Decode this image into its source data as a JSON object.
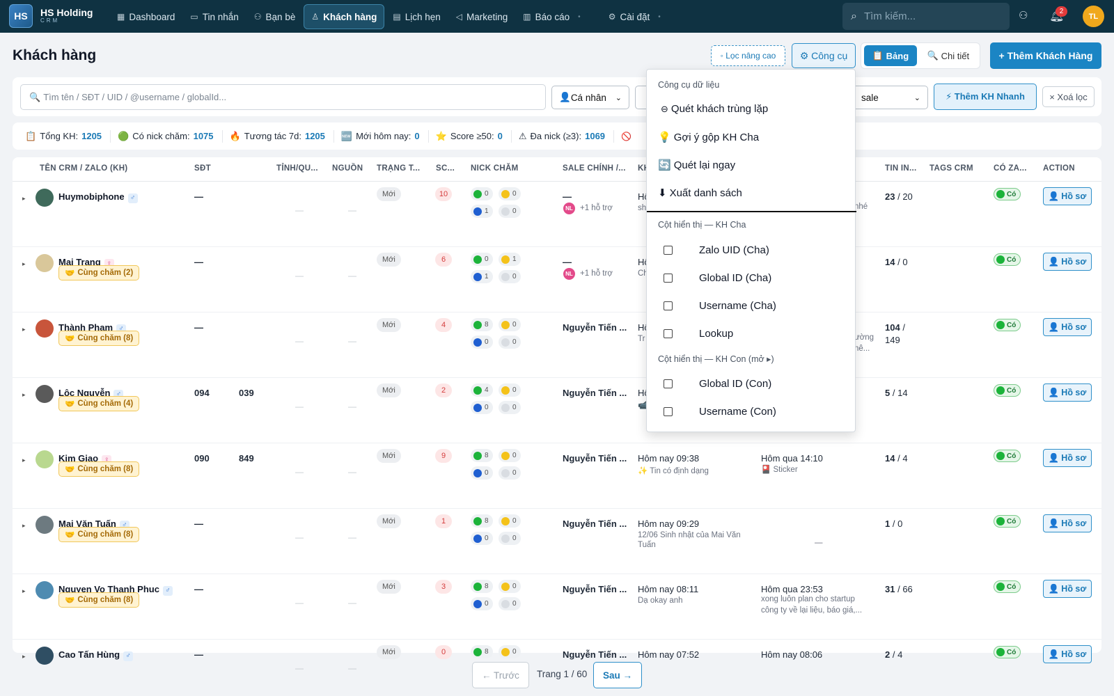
{
  "app": {
    "logo_text": "HS",
    "brand": "HS Holding",
    "brand_sub": "CRM"
  },
  "nav": [
    {
      "label": "Dashboard",
      "icon": "grid-icon"
    },
    {
      "label": "Tin nhắn",
      "icon": "chat-icon"
    },
    {
      "label": "Bạn bè",
      "icon": "friends-icon"
    },
    {
      "label": "Khách hàng",
      "icon": "user-icon",
      "active": true
    },
    {
      "label": "Lịch hẹn",
      "icon": "calendar-icon"
    },
    {
      "label": "Marketing",
      "icon": "megaphone-icon"
    },
    {
      "label": "Báo cáo",
      "icon": "chart-icon"
    },
    {
      "label": "Cài đặt",
      "icon": "gear-icon"
    }
  ],
  "search": {
    "placeholder": "Tìm kiếm..."
  },
  "notifications": {
    "count": "2"
  },
  "user": {
    "initials": "TL"
  },
  "page": {
    "title": "Khách hàng"
  },
  "toolbar": {
    "advanced_filter": "◦ Lọc nâng cao",
    "tools": "⚙ Công cụ",
    "view_table": "Bảng",
    "view_detail": "Chi tiết",
    "add": "+ Thêm Khách Hàng"
  },
  "filters": {
    "search_placeholder": "Tìm tên / SĐT / UID / @username / globalId...",
    "type": "Cá nhân",
    "sale": "sale",
    "quick_add": "⚡ Thêm KH Nhanh",
    "clear": "× Xoá lọc"
  },
  "stats": [
    {
      "label": "Tổng KH:",
      "value": "1205",
      "icon": "📋"
    },
    {
      "label": "Có nick chăm:",
      "value": "1075",
      "icon": "🟢"
    },
    {
      "label": "Tương tác 7d:",
      "value": "1205",
      "icon": "🔥"
    },
    {
      "label": "Mới hôm nay:",
      "value": "0",
      "icon": "🆕"
    },
    {
      "label": "Score ≥50:",
      "value": "0",
      "icon": "⭐"
    },
    {
      "label": "Đa nick (≥3):",
      "value": "1069",
      "icon": "⚠"
    }
  ],
  "columns": [
    "TÊN CRM / ZALO (KH)",
    "SĐT",
    "TỈNH/QU...",
    "NGUỒN",
    "TRẠNG T...",
    "SC...",
    "NICK CHĂM",
    "SALE CHÍNH /...",
    "KH",
    "TIN IN...",
    "TAGS CRM",
    "CÓ ZA...",
    "ACTION"
  ],
  "rows": [
    {
      "name": "Huymobiphone",
      "gender": "♂",
      "female": false,
      "cung": "",
      "phone": "—",
      "status": "Mới",
      "score": "10",
      "nick": [
        "0",
        "0",
        "1",
        "0"
      ],
      "sale": "—",
      "sale_extra": "+1 hỗ trợ",
      "last_in": "Hô",
      "last_in_sub": "sh",
      "last_out": "",
      "last_out_sub": "nhé",
      "tin_a": "23",
      "tin_b": "/ 20",
      "co": "Có",
      "action": "Hồ sơ",
      "avatar_color": "#3f6a5b"
    },
    {
      "name": "Mai Trang",
      "gender": "♀",
      "female": true,
      "cung": "Cùng chăm (2)",
      "phone": "—",
      "status": "Mới",
      "score": "6",
      "nick": [
        "0",
        "1",
        "1",
        "0"
      ],
      "sale": "—",
      "sale_extra": "+1 hỗ trợ",
      "last_in": "Hô",
      "last_in_sub": "Ch",
      "last_out": "",
      "last_out_sub": "",
      "tin_a": "14",
      "tin_b": "/ 0",
      "co": "Có",
      "action": "Hồ sơ",
      "avatar_color": "#d9c79a"
    },
    {
      "name": "Thành Phạm",
      "gender": "♂",
      "female": false,
      "cung": "Cùng chăm (8)",
      "phone": "—",
      "status": "Mới",
      "score": "4",
      "nick": [
        "8",
        "0",
        "0",
        "0"
      ],
      "sale": "Nguyễn Tiến ...",
      "sale_extra": "",
      "last_in": "Hô",
      "last_in_sub": "Tr",
      "last_out": "",
      "last_out_sub": "ường",
      "last_out_sub2": "nê...",
      "tin_a": "104",
      "tin_b": "/",
      "tin_c": "149",
      "co": "Có",
      "action": "Hồ sơ",
      "avatar_color": "#c8553b"
    },
    {
      "name": "Lộc Nguyễn",
      "gender": "♂",
      "female": false,
      "cung": "Cùng chăm (4)",
      "phone": "094",
      "phone2": "039",
      "status": "Mới",
      "score": "2",
      "nick": [
        "4",
        "0",
        "0",
        "0"
      ],
      "sale": "Nguyễn Tiến ...",
      "sale_extra": "",
      "last_in": "Hô",
      "last_in_sub": "📹",
      "last_out": "",
      "last_out_sub": "",
      "tin_a": "5",
      "tin_b": "/ 14",
      "co": "Có",
      "action": "Hồ sơ",
      "avatar_color": "#5a5a5a"
    },
    {
      "name": "Kim Giao",
      "gender": "♀",
      "female": true,
      "cung": "Cùng chăm (8)",
      "phone": "090",
      "phone2": "849",
      "status": "Mới",
      "score": "9",
      "nick": [
        "8",
        "0",
        "0",
        "0"
      ],
      "sale": "Nguyễn Tiến ...",
      "sale_extra": "",
      "last_in": "Hôm nay 09:38",
      "last_in_sub": "✨ Tin có định dạng",
      "last_out": "Hôm qua 14:10",
      "last_out_sub": "🎴 Sticker",
      "tin_a": "14",
      "tin_b": "/ 4",
      "co": "Có",
      "action": "Hồ sơ",
      "avatar_color": "#b9d88f"
    },
    {
      "name": "Mai Văn Tuấn",
      "gender": "♂",
      "female": false,
      "cung": "Cùng chăm (8)",
      "phone": "—",
      "status": "Mới",
      "score": "1",
      "nick": [
        "8",
        "0",
        "0",
        "0"
      ],
      "sale": "Nguyễn Tiến ...",
      "sale_extra": "",
      "last_in": "Hôm nay 09:29",
      "last_in_sub": "12/06 Sinh nhật của Mai Văn",
      "last_in_sub2": "Tuấn",
      "last_out": "",
      "last_out_sub": "—",
      "tin_a": "1",
      "tin_b": "/ 0",
      "co": "Có",
      "action": "Hồ sơ",
      "avatar_color": "#6d7a80"
    },
    {
      "name": "Nguyen Vo Thanh Phuc",
      "gender": "♂",
      "female": false,
      "cung": "Cùng chăm (8)",
      "phone": "—",
      "status": "Mới",
      "score": "3",
      "nick": [
        "8",
        "0",
        "0",
        "0"
      ],
      "sale": "Nguyễn Tiến ...",
      "sale_extra": "",
      "last_in": "Hôm nay 08:11",
      "last_in_sub": "Dạ okay anh",
      "last_out": "Hôm qua 23:53",
      "last_out_sub": "xong luôn plan cho startup",
      "last_out_sub2": "công ty về lại liệu, báo giá,...",
      "tin_a": "31",
      "tin_b": "/ 66",
      "co": "Có",
      "action": "Hồ sơ",
      "avatar_color": "#4e8bb1"
    },
    {
      "name": "Cao Tấn Hùng",
      "gender": "♂",
      "female": false,
      "cung": "",
      "phone": "—",
      "status": "Mới",
      "score": "0",
      "nick": [
        "8",
        "0",
        "0",
        "0"
      ],
      "sale": "Nguyễn Tiến ...",
      "sale_extra": "",
      "last_in": "Hôm nay 07:52",
      "last_in_sub": "",
      "last_out": "Hôm nay 08:06",
      "last_out_sub": "",
      "tin_a": "2",
      "tin_b": "/ 4",
      "co": "Có",
      "action": "Hồ sơ",
      "avatar_color": "#2f4e63"
    }
  ],
  "dropdown": {
    "section_tools": "Công cụ dữ liệu",
    "items": [
      {
        "icon": "⊖",
        "label": "Quét khách trùng lặp"
      },
      {
        "icon": "💡",
        "label": "Gợi ý gộp KH Cha"
      },
      {
        "icon": "🔄",
        "label": "Quét lại ngay"
      },
      {
        "icon": "⬇",
        "label": "Xuất danh sách"
      }
    ],
    "section_parent": "Cột hiển thị — KH Cha",
    "parent_cols": [
      "Zalo UID (Cha)",
      "Global ID (Cha)",
      "Username (Cha)",
      "Lookup"
    ],
    "section_child": "Cột hiển thị — KH Con (mở ▸)",
    "child_cols": [
      "Global ID (Con)",
      "Username (Con)"
    ]
  },
  "pagination": {
    "prev": "← Trước",
    "info": "Trang 1 / 60",
    "next": "Sau →"
  },
  "colors": {
    "topbar": "#0f3242",
    "accent": "#1b85c4",
    "score": "#d43c3c",
    "green": "#1cb33a"
  }
}
